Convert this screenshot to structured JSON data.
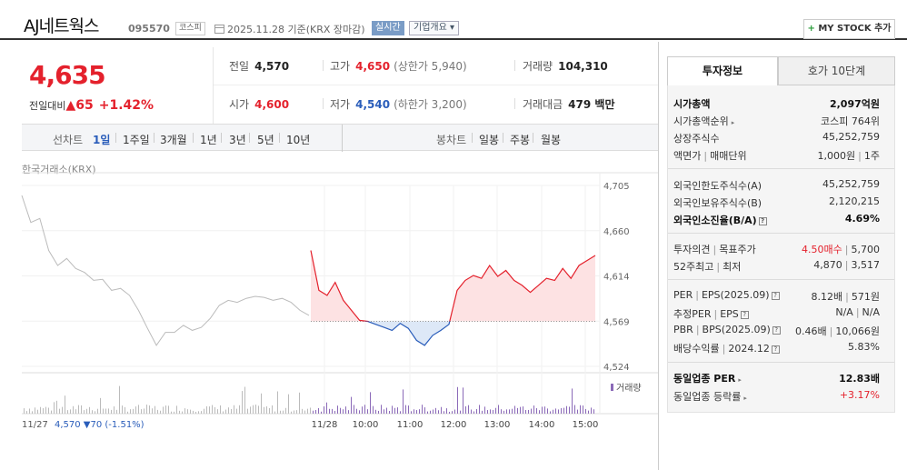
{
  "header": {
    "stock_name": "AJ네트웍스",
    "stock_code": "095570",
    "market": "코스피",
    "date_info": "2025.11.28 기준(KRX 장마감)",
    "realtime_label": "실시간",
    "company_label": "기업개요 ▾",
    "mystock_label": "MY STOCK 추가"
  },
  "price": {
    "current": "4,635",
    "change_label": "전일대비",
    "change": "▲65",
    "change_pct": "+1.42%"
  },
  "stats": {
    "prev_close_label": "전일",
    "prev_close": "4,570",
    "high_label": "고가",
    "high": "4,650",
    "upper_limit": "(상한가 5,940)",
    "volume_label": "거래량",
    "volume": "104,310",
    "open_label": "시가",
    "open": "4,600",
    "low_label": "저가",
    "low": "4,540",
    "lower_limit": "(하한가 3,200)",
    "amount_label": "거래대금",
    "amount": "479 백만"
  },
  "periods": {
    "line_label": "선차트",
    "items": [
      "1일",
      "1주일",
      "3개월",
      "1년",
      "3년",
      "5년",
      "10년"
    ],
    "candle_label": "봉차트",
    "candle_items": [
      "일봉",
      "주봉",
      "월봉"
    ]
  },
  "chart": {
    "source": "한국거래소(KRX)",
    "volume_label": "거래량",
    "prev_day_label": "11/27",
    "prev_day_value": "4,570 ▼70 (-1.51%)",
    "accent_up": "#e4212c",
    "accent_down": "#2a5dba"
  },
  "chart_data": {
    "type": "line",
    "y_ticks": [
      "4,705",
      "4,660",
      "4,614",
      "4,569",
      "4,524"
    ],
    "ylim": [
      4524,
      4705
    ],
    "baseline": 4569,
    "x_ticks": [
      "11/28",
      "10:00",
      "11:00",
      "12:00",
      "13:00",
      "14:00",
      "15:00"
    ],
    "series": [
      {
        "values": [
          4695,
          4668,
          4672,
          4640,
          4625,
          4632,
          4622,
          4618,
          4610,
          4611,
          4600,
          4602,
          4595,
          4580,
          4562,
          4545,
          4558,
          4558,
          4565,
          4560,
          4563,
          4572,
          4585,
          4590,
          4588,
          4592,
          4594,
          4593,
          4590,
          4592,
          4588,
          4580,
          4575
        ]
      },
      {
        "values": [
          4640,
          4600,
          4595,
          4608,
          4590,
          4580,
          4570,
          4569,
          4566,
          4563,
          4560,
          4567,
          4562,
          4550,
          4545,
          4555,
          4560,
          4566,
          4600,
          4610,
          4615,
          4612,
          4625,
          4614,
          4620,
          4610,
          4605,
          4598,
          4605,
          4612,
          4610,
          4622,
          4612,
          4625,
          4630,
          4635
        ]
      }
    ]
  },
  "info": {
    "tab_active": "투자정보",
    "tab_inactive": "호가 10단계",
    "market_cap_label": "시가총액",
    "market_cap": "2,097억원",
    "cap_rank_label": "시가총액순위",
    "cap_rank": "코스피 764위",
    "shares_label": "상장주식수",
    "shares": "45,252,759",
    "par_label": "액면가",
    "trade_unit_label": "매매단위",
    "par_value": "1,000원",
    "trade_unit": "1주",
    "foreign_limit_label": "외국인한도주식수(A)",
    "foreign_limit": "45,252,759",
    "foreign_hold_label": "외국인보유주식수(B)",
    "foreign_hold": "2,120,215",
    "foreign_ratio_label": "외국인소진율(B/A)",
    "foreign_ratio": "4.69%",
    "opinion_label": "투자의견",
    "target_label": "목표주가",
    "opinion": "4.50매수",
    "target": "5,700",
    "w52_label": "52주최고",
    "w52_low_label": "최저",
    "w52_high": "4,870",
    "w52_low": "3,517",
    "per_label": "PER",
    "eps_label": "EPS(2025.09)",
    "per": "8.12배",
    "eps": "571원",
    "est_per_label": "추정PER",
    "est_eps_label": "EPS",
    "est_per": "N/A",
    "est_eps": "N/A",
    "pbr_label": "PBR",
    "bps_label": "BPS(2025.09)",
    "pbr": "0.46배",
    "bps": "10,066원",
    "div_label": "배당수익률",
    "div_date": "2024.12",
    "div": "5.83%",
    "sector_per_label": "동일업종 PER",
    "sector_per": "12.83배",
    "sector_change_label": "동일업종 등락률",
    "sector_change": "+3.17%"
  }
}
